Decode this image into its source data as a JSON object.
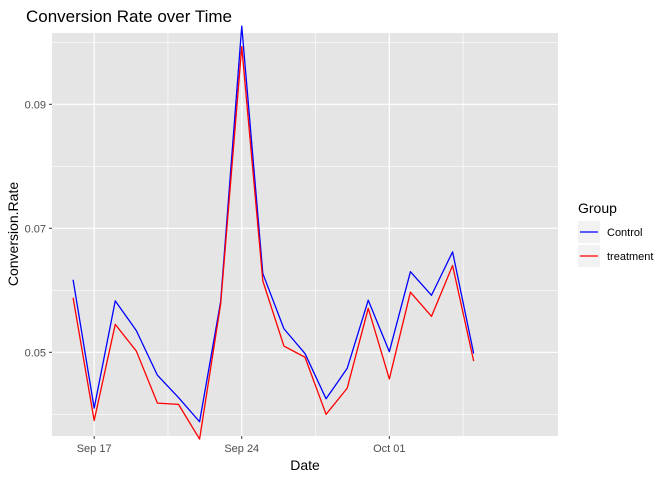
{
  "chart_data": {
    "type": "line",
    "title": "Conversion Rate over Time",
    "xlabel": "Date",
    "ylabel": "Conversion.Rate",
    "x_ticks": [
      {
        "date": "2023-09-17",
        "label": "Sep 17"
      },
      {
        "date": "2023-09-24",
        "label": "Sep 24"
      },
      {
        "date": "2023-10-01",
        "label": "Oct 01"
      }
    ],
    "y_ticks": [
      {
        "value": 0.05,
        "label": "0.05"
      },
      {
        "value": 0.07,
        "label": "0.07"
      },
      {
        "value": 0.09,
        "label": "0.09"
      }
    ],
    "xlim": [
      "2023-09-15",
      "2023-10-09"
    ],
    "ylim": [
      0.0365,
      0.1015
    ],
    "grid": true,
    "legend": {
      "title": "Group",
      "placement": "right"
    },
    "x": [
      "2023-09-16",
      "2023-09-17",
      "2023-09-18",
      "2023-09-19",
      "2023-09-20",
      "2023-09-21",
      "2023-09-22",
      "2023-09-23",
      "2023-09-24",
      "2023-09-25",
      "2023-09-26",
      "2023-09-27",
      "2023-09-28",
      "2023-09-29",
      "2023-09-30",
      "2023-10-01",
      "2023-10-02",
      "2023-10-03",
      "2023-10-04",
      "2023-10-05"
    ],
    "series": [
      {
        "name": "Control",
        "color": "#0000FF",
        "values": [
          0.0617,
          0.041,
          0.0583,
          0.0535,
          0.0463,
          0.0427,
          0.0388,
          0.0582,
          0.1026,
          0.0627,
          0.0538,
          0.0498,
          0.0425,
          0.0474,
          0.0584,
          0.0501,
          0.063,
          0.0592,
          0.0662,
          0.0498
        ]
      },
      {
        "name": "treatment",
        "color": "#FF0000",
        "values": [
          0.0588,
          0.039,
          0.0545,
          0.0502,
          0.0418,
          0.0416,
          0.036,
          0.0578,
          0.0993,
          0.0615,
          0.051,
          0.0492,
          0.04,
          0.0442,
          0.0571,
          0.0457,
          0.0597,
          0.0558,
          0.064,
          0.0486
        ]
      }
    ]
  }
}
